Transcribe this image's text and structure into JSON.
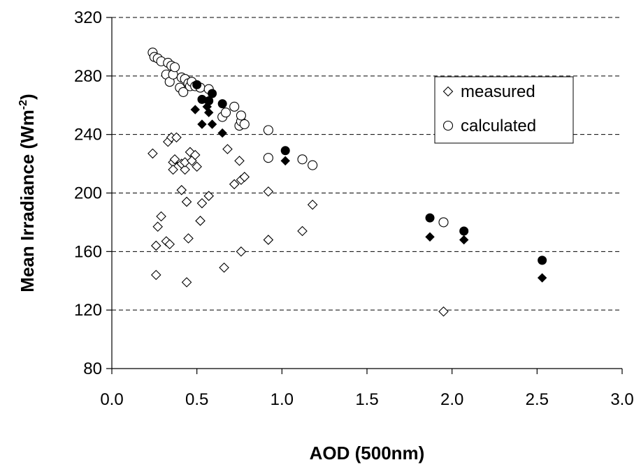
{
  "chart_data": {
    "type": "scatter",
    "xlabel": "AOD (500nm)",
    "ylabel": "Mean Irradiance (Wm",
    "ylabel_sup": "-2",
    "ylabel_end": ")",
    "xlim": [
      0,
      3
    ],
    "ylim": [
      80,
      320
    ],
    "xticks": [
      0,
      0.5,
      1,
      1.5,
      2,
      2.5,
      3
    ],
    "xtick_labels": [
      "0.0",
      "0.5",
      "1.0",
      "1.5",
      "2.0",
      "2.5",
      "3.0"
    ],
    "yticks": [
      80,
      120,
      160,
      200,
      240,
      280,
      320
    ],
    "ytick_labels": [
      "80",
      "120",
      "160",
      "200",
      "240",
      "280",
      "320"
    ],
    "grid": "horizontal dashed",
    "legend_position": "upper-right",
    "series": [
      {
        "name": "measured",
        "marker": "diamond",
        "fill": "none",
        "points": [
          [
            0.24,
            227
          ],
          [
            0.26,
            144
          ],
          [
            0.26,
            164
          ],
          [
            0.27,
            177
          ],
          [
            0.29,
            184
          ],
          [
            0.32,
            167
          ],
          [
            0.33,
            235
          ],
          [
            0.34,
            165
          ],
          [
            0.35,
            238
          ],
          [
            0.36,
            221
          ],
          [
            0.36,
            216
          ],
          [
            0.37,
            223
          ],
          [
            0.38,
            238
          ],
          [
            0.41,
            202
          ],
          [
            0.41,
            220
          ],
          [
            0.43,
            216
          ],
          [
            0.43,
            221
          ],
          [
            0.44,
            139
          ],
          [
            0.44,
            194
          ],
          [
            0.45,
            169
          ],
          [
            0.46,
            228
          ],
          [
            0.47,
            222
          ],
          [
            0.49,
            226
          ],
          [
            0.5,
            218
          ],
          [
            0.52,
            181
          ],
          [
            0.53,
            193
          ],
          [
            0.57,
            198
          ],
          [
            0.66,
            149
          ],
          [
            0.68,
            230
          ],
          [
            0.72,
            206
          ],
          [
            0.75,
            222
          ],
          [
            0.76,
            160
          ],
          [
            0.76,
            209
          ],
          [
            0.78,
            211
          ],
          [
            0.92,
            201
          ],
          [
            0.92,
            168
          ],
          [
            1.12,
            174
          ],
          [
            1.18,
            192
          ],
          [
            1.95,
            119
          ]
        ]
      },
      {
        "name": "calculated",
        "marker": "circle",
        "fill": "none",
        "points": [
          [
            0.24,
            296
          ],
          [
            0.25,
            293
          ],
          [
            0.27,
            292
          ],
          [
            0.29,
            290
          ],
          [
            0.32,
            281
          ],
          [
            0.33,
            289
          ],
          [
            0.34,
            276
          ],
          [
            0.35,
            287
          ],
          [
            0.36,
            281
          ],
          [
            0.37,
            286
          ],
          [
            0.4,
            272
          ],
          [
            0.41,
            279
          ],
          [
            0.42,
            269
          ],
          [
            0.43,
            278
          ],
          [
            0.45,
            275
          ],
          [
            0.46,
            273
          ],
          [
            0.47,
            276
          ],
          [
            0.49,
            273
          ],
          [
            0.52,
            272
          ],
          [
            0.57,
            271
          ],
          [
            0.65,
            252
          ],
          [
            0.67,
            255
          ],
          [
            0.72,
            259
          ],
          [
            0.75,
            246
          ],
          [
            0.76,
            249
          ],
          [
            0.76,
            253
          ],
          [
            0.78,
            247
          ],
          [
            0.92,
            224
          ],
          [
            0.92,
            243
          ],
          [
            1.12,
            223
          ],
          [
            1.18,
            219
          ],
          [
            1.95,
            180
          ]
        ]
      },
      {
        "name": "",
        "marker": "diamond",
        "fill": "solid",
        "points": [
          [
            0.49,
            257
          ],
          [
            0.53,
            247
          ],
          [
            0.56,
            259
          ],
          [
            0.57,
            255
          ],
          [
            0.59,
            247
          ],
          [
            0.65,
            241
          ],
          [
            1.02,
            222
          ],
          [
            1.87,
            170
          ],
          [
            2.07,
            168
          ],
          [
            2.53,
            142
          ]
        ]
      },
      {
        "name": "",
        "marker": "circle",
        "fill": "solid",
        "points": [
          [
            0.5,
            274
          ],
          [
            0.53,
            264
          ],
          [
            0.57,
            263
          ],
          [
            0.59,
            268
          ],
          [
            0.65,
            261
          ],
          [
            1.02,
            229
          ],
          [
            1.87,
            183
          ],
          [
            2.07,
            174
          ],
          [
            2.53,
            154
          ]
        ]
      }
    ]
  }
}
